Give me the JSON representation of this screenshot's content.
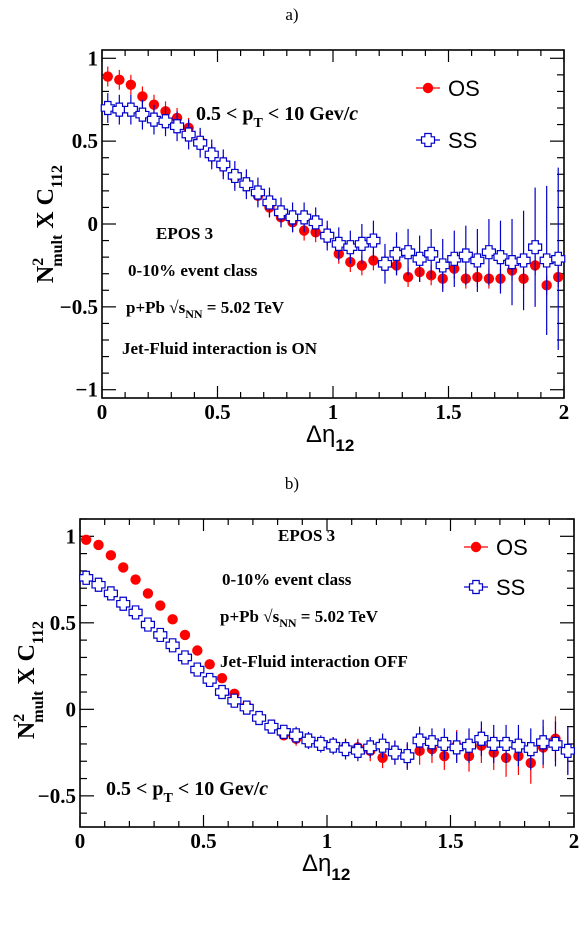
{
  "chart_data": [
    {
      "type": "scatter",
      "panel_label": "a)",
      "xlabel_main": "Δη",
      "xlabel_sub": "12",
      "ylabel": {
        "n": "N",
        "sup": "2",
        "sub": "mult",
        "mid": " X C",
        "sub2": "112"
      },
      "xlim": [
        0,
        2
      ],
      "ylim": [
        -1.05,
        1.05
      ],
      "x_ticks": [
        "0",
        "0.5",
        "1",
        "1.5",
        "2"
      ],
      "x_tick_values": [
        0,
        0.5,
        1,
        1.5,
        2
      ],
      "y_ticks": [
        "1",
        "0.5",
        "0",
        "−0.5",
        "−1"
      ],
      "y_tick_values": [
        1,
        0.5,
        0,
        -0.5,
        -1
      ],
      "legend_position": "top-right",
      "annotations": {
        "pt": {
          "main": "0.5 < p",
          "sub": "T",
          "rest": " < 10 Gev/",
          "italic": "c"
        },
        "generator": "EPOS 3",
        "centrality": "0-10% event class",
        "system": {
          "pre": "p+Pb",
          "rad": "√",
          "s": "s",
          "ssub": "NN",
          "post": " = 5.02 TeV"
        },
        "jet": "Jet-Fluid interaction is ON"
      },
      "series": [
        {
          "name": "OS",
          "marker": "circle",
          "color": "#ff0000",
          "x": [
            0.025,
            0.075,
            0.125,
            0.175,
            0.225,
            0.275,
            0.325,
            0.375,
            0.425,
            0.475,
            0.525,
            0.575,
            0.625,
            0.675,
            0.725,
            0.775,
            0.825,
            0.875,
            0.925,
            0.975,
            1.025,
            1.075,
            1.125,
            1.175,
            1.225,
            1.275,
            1.325,
            1.375,
            1.425,
            1.475,
            1.525,
            1.575,
            1.625,
            1.675,
            1.725,
            1.775,
            1.825,
            1.875,
            1.925,
            1.975
          ],
          "y": [
            0.89,
            0.87,
            0.84,
            0.77,
            0.72,
            0.68,
            0.64,
            0.58,
            0.5,
            0.42,
            0.35,
            0.28,
            0.24,
            0.17,
            0.1,
            0.04,
            0.01,
            -0.04,
            -0.05,
            -0.07,
            -0.18,
            -0.23,
            -0.25,
            -0.22,
            -0.24,
            -0.25,
            -0.32,
            -0.29,
            -0.31,
            -0.33,
            -0.27,
            -0.33,
            -0.32,
            -0.33,
            -0.33,
            -0.28,
            -0.33,
            -0.25,
            -0.37,
            -0.32
          ],
          "err": [
            0.06,
            0.06,
            0.06,
            0.06,
            0.06,
            0.06,
            0.06,
            0.06,
            0.06,
            0.06,
            0.06,
            0.06,
            0.06,
            0.06,
            0.06,
            0.06,
            0.06,
            0.06,
            0.06,
            0.06,
            0.06,
            0.06,
            0.06,
            0.06,
            0.06,
            0.06,
            0.06,
            0.06,
            0.06,
            0.06,
            0.06,
            0.06,
            0.06,
            0.06,
            0.06,
            0.06,
            0.06,
            0.06,
            0.06,
            0.06
          ]
        },
        {
          "name": "SS",
          "marker": "open-cross",
          "color": "#0000cc",
          "x": [
            0.025,
            0.075,
            0.125,
            0.175,
            0.225,
            0.275,
            0.325,
            0.375,
            0.425,
            0.475,
            0.525,
            0.575,
            0.625,
            0.675,
            0.725,
            0.775,
            0.825,
            0.875,
            0.925,
            0.975,
            1.025,
            1.075,
            1.125,
            1.175,
            1.225,
            1.275,
            1.325,
            1.375,
            1.425,
            1.475,
            1.525,
            1.575,
            1.625,
            1.675,
            1.725,
            1.775,
            1.825,
            1.875,
            1.925,
            1.975
          ],
          "y": [
            0.7,
            0.69,
            0.69,
            0.66,
            0.63,
            0.62,
            0.59,
            0.54,
            0.49,
            0.42,
            0.36,
            0.29,
            0.24,
            0.19,
            0.13,
            0.07,
            0.04,
            0.04,
            0.01,
            -0.07,
            -0.12,
            -0.14,
            -0.12,
            -0.1,
            -0.24,
            -0.18,
            -0.17,
            -0.21,
            -0.18,
            -0.25,
            -0.21,
            -0.19,
            -0.22,
            -0.17,
            -0.2,
            -0.23,
            -0.22,
            -0.14,
            -0.22,
            -0.21
          ],
          "err": [
            0.09,
            0.09,
            0.09,
            0.09,
            0.09,
            0.09,
            0.09,
            0.09,
            0.09,
            0.09,
            0.09,
            0.09,
            0.09,
            0.09,
            0.09,
            0.09,
            0.09,
            0.09,
            0.09,
            0.09,
            0.1,
            0.1,
            0.12,
            0.12,
            0.12,
            0.13,
            0.14,
            0.14,
            0.15,
            0.16,
            0.17,
            0.18,
            0.19,
            0.2,
            0.22,
            0.26,
            0.3,
            0.36,
            0.45,
            0.55
          ]
        }
      ]
    },
    {
      "type": "scatter",
      "panel_label": "b)",
      "xlabel_main": "Δη",
      "xlabel_sub": "12",
      "ylabel": {
        "n": "N",
        "sup": "2",
        "sub": "mult",
        "mid": " X C",
        "sub2": "112"
      },
      "xlim": [
        0,
        2
      ],
      "ylim": [
        -0.68,
        1.1
      ],
      "x_ticks": [
        "0",
        "0.5",
        "1",
        "1.5",
        "2"
      ],
      "x_tick_values": [
        0,
        0.5,
        1,
        1.5,
        2
      ],
      "y_ticks": [
        "1",
        "0.5",
        "0",
        "−0.5"
      ],
      "y_tick_values": [
        1,
        0.5,
        0,
        -0.5
      ],
      "legend_position": "top-right",
      "annotations": {
        "pt": {
          "main": "0.5 < p",
          "sub": "T",
          "rest": " < 10 Gev/",
          "italic": "c"
        },
        "generator": "EPOS 3",
        "centrality": "0-10% event class",
        "system": {
          "pre": "p+Pb",
          "rad": "√",
          "s": "s",
          "ssub": "NN",
          "post": " = 5.02 TeV"
        },
        "jet": "Jet-Fluid interaction OFF"
      },
      "series": [
        {
          "name": "OS",
          "marker": "circle",
          "color": "#ff0000",
          "x": [
            0.025,
            0.075,
            0.125,
            0.175,
            0.225,
            0.275,
            0.325,
            0.375,
            0.425,
            0.475,
            0.525,
            0.575,
            0.625,
            0.675,
            0.725,
            0.775,
            0.825,
            0.875,
            0.925,
            0.975,
            1.025,
            1.075,
            1.125,
            1.175,
            1.225,
            1.275,
            1.325,
            1.375,
            1.425,
            1.475,
            1.525,
            1.575,
            1.625,
            1.675,
            1.725,
            1.775,
            1.825,
            1.875,
            1.925,
            1.975
          ],
          "y": [
            0.98,
            0.95,
            0.89,
            0.82,
            0.75,
            0.67,
            0.6,
            0.52,
            0.43,
            0.34,
            0.26,
            0.18,
            0.09,
            0.02,
            -0.05,
            -0.1,
            -0.15,
            -0.17,
            -0.18,
            -0.2,
            -0.21,
            -0.22,
            -0.22,
            -0.24,
            -0.28,
            -0.25,
            -0.27,
            -0.24,
            -0.23,
            -0.27,
            -0.21,
            -0.27,
            -0.21,
            -0.25,
            -0.28,
            -0.27,
            -0.31,
            -0.22,
            -0.17,
            -0.24
          ],
          "err": [
            0.02,
            0.02,
            0.02,
            0.02,
            0.02,
            0.02,
            0.02,
            0.02,
            0.02,
            0.02,
            0.02,
            0.02,
            0.02,
            0.02,
            0.03,
            0.03,
            0.03,
            0.04,
            0.04,
            0.04,
            0.05,
            0.05,
            0.05,
            0.06,
            0.06,
            0.07,
            0.07,
            0.08,
            0.08,
            0.08,
            0.09,
            0.09,
            0.1,
            0.1,
            0.11,
            0.11,
            0.12,
            0.12,
            0.13,
            0.13
          ]
        },
        {
          "name": "SS",
          "marker": "open-cross",
          "color": "#0000cc",
          "x": [
            0.025,
            0.075,
            0.125,
            0.175,
            0.225,
            0.275,
            0.325,
            0.375,
            0.425,
            0.475,
            0.525,
            0.575,
            0.625,
            0.675,
            0.725,
            0.775,
            0.825,
            0.875,
            0.925,
            0.975,
            1.025,
            1.075,
            1.125,
            1.175,
            1.225,
            1.275,
            1.325,
            1.375,
            1.425,
            1.475,
            1.525,
            1.575,
            1.625,
            1.675,
            1.725,
            1.775,
            1.825,
            1.875,
            1.925,
            1.975
          ],
          "y": [
            0.76,
            0.72,
            0.67,
            0.61,
            0.56,
            0.49,
            0.43,
            0.37,
            0.3,
            0.23,
            0.17,
            0.1,
            0.05,
            0.01,
            -0.05,
            -0.1,
            -0.13,
            -0.15,
            -0.18,
            -0.2,
            -0.21,
            -0.23,
            -0.24,
            -0.22,
            -0.21,
            -0.25,
            -0.27,
            -0.18,
            -0.19,
            -0.2,
            -0.22,
            -0.21,
            -0.17,
            -0.2,
            -0.2,
            -0.21,
            -0.23,
            -0.19,
            -0.2,
            -0.24
          ],
          "err": [
            0.03,
            0.03,
            0.03,
            0.03,
            0.03,
            0.03,
            0.03,
            0.03,
            0.03,
            0.03,
            0.03,
            0.03,
            0.04,
            0.04,
            0.04,
            0.04,
            0.04,
            0.05,
            0.05,
            0.05,
            0.05,
            0.06,
            0.06,
            0.06,
            0.07,
            0.07,
            0.08,
            0.08,
            0.08,
            0.09,
            0.09,
            0.1,
            0.1,
            0.11,
            0.11,
            0.12,
            0.12,
            0.13,
            0.13,
            0.14
          ]
        }
      ]
    }
  ]
}
